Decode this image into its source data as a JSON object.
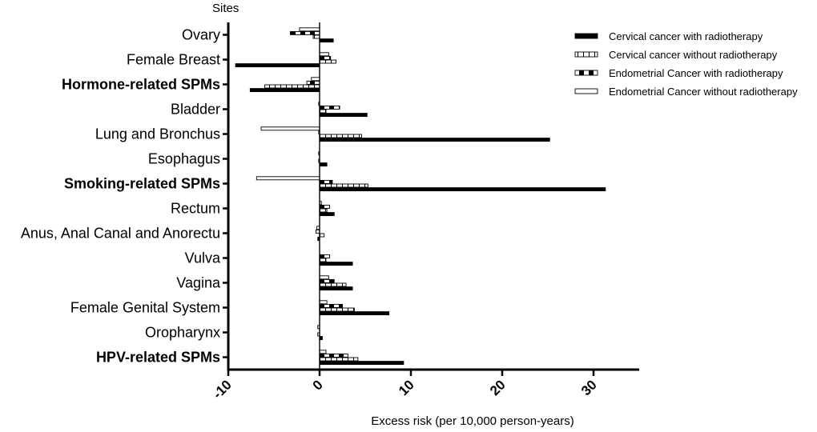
{
  "chart_data": {
    "type": "bar",
    "orientation": "horizontal",
    "title": "",
    "ylabel": "Sites",
    "xlabel": "Excess risk (per 10,000 person-years)",
    "xlim": [
      -10,
      35
    ],
    "xticks": [
      -10,
      0,
      10,
      20,
      30
    ],
    "grid": false,
    "legend_position": "top-right",
    "categories": [
      {
        "label": "Ovary",
        "bold": false
      },
      {
        "label": "Female Breast",
        "bold": false
      },
      {
        "label": "Hormone-related SPMs",
        "bold": true
      },
      {
        "label": "Bladder",
        "bold": false
      },
      {
        "label": "Lung and Bronchus",
        "bold": false
      },
      {
        "label": "Esophagus",
        "bold": false
      },
      {
        "label": "Smoking-related SPMs",
        "bold": true
      },
      {
        "label": "Rectum",
        "bold": false
      },
      {
        "label": "Anus, Anal Canal and Anorectu",
        "bold": false
      },
      {
        "label": "Vulva",
        "bold": false
      },
      {
        "label": "Vagina",
        "bold": false
      },
      {
        "label": "Female Genital System",
        "bold": false
      },
      {
        "label": "Oropharynx",
        "bold": false
      },
      {
        "label": "HPV-related SPMs",
        "bold": true
      }
    ],
    "series": [
      {
        "name": "Endometrial Cancer without  radiotherapy",
        "pattern": "empty",
        "values": [
          -2.2,
          1.0,
          -0.9,
          -0.1,
          -6.4,
          -0.1,
          -6.9,
          0.2,
          -0.3,
          0.0,
          1.0,
          0.8,
          -0.2,
          0.7
        ]
      },
      {
        "name": "Endometrial Cancer with radiotherapy",
        "pattern": "dash",
        "values": [
          -3.2,
          1.2,
          -1.4,
          2.2,
          -0.1,
          0.0,
          1.4,
          1.1,
          -0.4,
          1.1,
          1.6,
          2.5,
          0.0,
          3.1
        ]
      },
      {
        "name": "Cervical cancer without  radiotherapy",
        "pattern": "checker",
        "values": [
          -0.7,
          1.8,
          -6.0,
          0.7,
          4.6,
          -0.1,
          5.3,
          0.8,
          0.5,
          0.7,
          2.9,
          3.8,
          -0.2,
          4.2
        ]
      },
      {
        "name": "Cervical cancer with radiotherapy",
        "pattern": "solid",
        "values": [
          1.5,
          -9.2,
          -7.6,
          5.2,
          25.2,
          0.8,
          31.3,
          1.6,
          -0.2,
          3.6,
          3.6,
          7.6,
          0.3,
          9.2
        ]
      }
    ]
  }
}
